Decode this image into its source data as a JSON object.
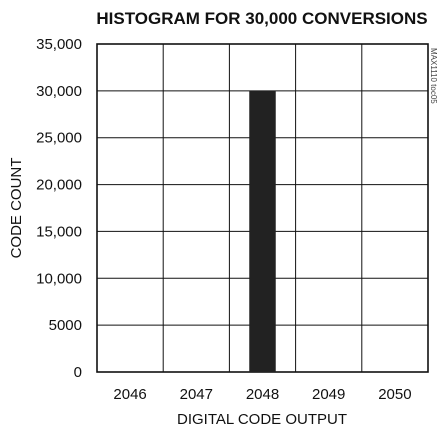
{
  "chart_data": {
    "type": "bar",
    "title": "HISTOGRAM FOR 30,000 CONVERSIONS",
    "xlabel": "DIGITAL CODE OUTPUT",
    "ylabel": "CODE COUNT",
    "categories": [
      "2046",
      "2047",
      "2048",
      "2049",
      "2050"
    ],
    "values": [
      0,
      0,
      30000,
      0,
      0
    ],
    "ylim": [
      0,
      35000
    ],
    "yticks": [
      0,
      5000,
      10000,
      15000,
      20000,
      25000,
      30000,
      35000
    ],
    "ytick_labels": [
      "0",
      "5000",
      "10,000",
      "15,000",
      "20,000",
      "25,000",
      "30,000",
      "35,000"
    ],
    "grid": true,
    "bar_color": "#222222",
    "figure_id": "MAX1110 toc05"
  }
}
